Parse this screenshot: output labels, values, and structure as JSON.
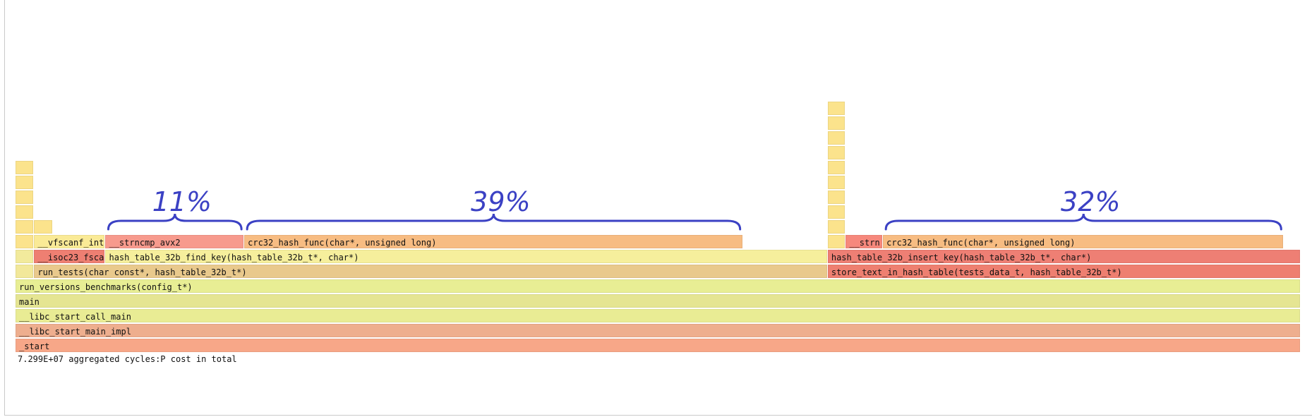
{
  "chart_data": {
    "type": "flamegraph",
    "total_label": "7.299E+07 aggregated cycles:P cost in total",
    "x_range": [
      0,
      100
    ],
    "frames": [
      {
        "label": "_start",
        "depth": 0,
        "start": 0.0,
        "width": 100.0,
        "color": "#f7a788"
      },
      {
        "label": "__libc_start_main_impl",
        "depth": 1,
        "start": 0.0,
        "width": 100.0,
        "color": "#eeae8e"
      },
      {
        "label": "__libc_start_call_main",
        "depth": 2,
        "start": 0.0,
        "width": 100.0,
        "color": "#e9ec94"
      },
      {
        "label": "main",
        "depth": 3,
        "start": 0.0,
        "width": 100.0,
        "color": "#e5e592"
      },
      {
        "label": "run_versions_benchmarks(config_t*)",
        "depth": 4,
        "start": 0.0,
        "width": 100.0,
        "color": "#e8ee94"
      },
      {
        "label": "",
        "depth": 5,
        "start": 0.0,
        "width": 1.45,
        "color": "#f2e89a"
      },
      {
        "label": "run_tests(char const*, hash_table_32b_t*)",
        "depth": 5,
        "start": 1.45,
        "width": 61.75,
        "color": "#e9c98c"
      },
      {
        "label": "store_text_in_hash_table(tests_data_t, hash_table_32b_t*)",
        "depth": 5,
        "start": 63.2,
        "width": 36.8,
        "color": "#ee7f70"
      },
      {
        "label": "",
        "depth": 6,
        "start": 0.0,
        "width": 1.45,
        "color": "#f2ea9c"
      },
      {
        "label": "__isoc23_fsca",
        "depth": 6,
        "start": 1.45,
        "width": 5.55,
        "color": "#ee7f72"
      },
      {
        "label": "hash_table_32b_find_key(hash_table_32b_t*, char*)",
        "depth": 6,
        "start": 7.0,
        "width": 56.2,
        "color": "#f6ef9c"
      },
      {
        "label": "hash_table_32b_insert_key(hash_table_32b_t*, char*)",
        "depth": 6,
        "start": 63.2,
        "width": 36.8,
        "color": "#ee7f74"
      },
      {
        "label": "",
        "depth": 7,
        "start": 0.0,
        "width": 1.45,
        "color": "#fbe38c"
      },
      {
        "label": "__vfscanf_int",
        "depth": 7,
        "start": 1.45,
        "width": 5.55,
        "color": "#faea96"
      },
      {
        "label": "__strncmp_avx2",
        "depth": 7,
        "start": 7.0,
        "width": 10.8,
        "color": "#f79a8d"
      },
      {
        "label": "crc32_hash_func(char*, unsigned long)",
        "depth": 7,
        "start": 17.8,
        "width": 38.8,
        "color": "#f7bc82"
      },
      {
        "label": "",
        "depth": 7,
        "start": 63.2,
        "width": 1.4,
        "color": "#fbe38c"
      },
      {
        "label": "__strn",
        "depth": 7,
        "start": 64.6,
        "width": 2.9,
        "color": "#f6887c"
      },
      {
        "label": "crc32_hash_func(char*, unsigned long)",
        "depth": 7,
        "start": 67.5,
        "width": 31.2,
        "color": "#f7bc82"
      },
      {
        "label": "",
        "depth": 8,
        "start": 0.0,
        "width": 1.45,
        "color": "#fbe38c"
      },
      {
        "label": "",
        "depth": 8,
        "start": 1.45,
        "width": 1.45,
        "color": "#fbe38c"
      },
      {
        "label": "",
        "depth": 8,
        "start": 63.2,
        "width": 1.4,
        "color": "#fbe38c"
      },
      {
        "label": "",
        "depth": 9,
        "start": 0.0,
        "width": 1.45,
        "color": "#fbe38c"
      },
      {
        "label": "",
        "depth": 9,
        "start": 63.2,
        "width": 1.4,
        "color": "#fbe38c"
      },
      {
        "label": "",
        "depth": 10,
        "start": 0.0,
        "width": 1.45,
        "color": "#fbe38c"
      },
      {
        "label": "",
        "depth": 10,
        "start": 63.2,
        "width": 1.4,
        "color": "#fbe38c"
      },
      {
        "label": "",
        "depth": 11,
        "start": 0.0,
        "width": 1.45,
        "color": "#fbe38c"
      },
      {
        "label": "",
        "depth": 11,
        "start": 63.2,
        "width": 1.4,
        "color": "#fbe38c"
      },
      {
        "label": "",
        "depth": 12,
        "start": 0.0,
        "width": 1.45,
        "color": "#fbe38c"
      },
      {
        "label": "",
        "depth": 12,
        "start": 63.2,
        "width": 1.4,
        "color": "#fbe38c"
      },
      {
        "label": "",
        "depth": 13,
        "start": 63.2,
        "width": 1.4,
        "color": "#fbe38c"
      },
      {
        "label": "",
        "depth": 14,
        "start": 63.2,
        "width": 1.4,
        "color": "#fbe38c"
      },
      {
        "label": "",
        "depth": 15,
        "start": 63.2,
        "width": 1.4,
        "color": "#fbe38c"
      },
      {
        "label": "",
        "depth": 16,
        "start": 63.2,
        "width": 1.4,
        "color": "#fbe38c"
      }
    ],
    "annotations": [
      {
        "text": "11%",
        "start": 7.0,
        "end": 17.8
      },
      {
        "text": "39%",
        "start": 17.8,
        "end": 56.6
      },
      {
        "text": "32%",
        "start": 67.5,
        "end": 98.7
      }
    ],
    "annotation_color": "#3b41c4"
  }
}
